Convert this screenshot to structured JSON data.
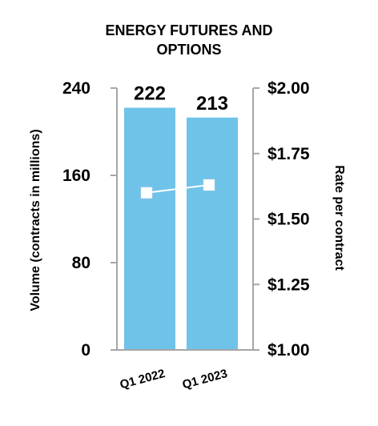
{
  "chart_data": {
    "type": "bar",
    "title_lines": [
      "ENERGY FUTURES AND",
      "OPTIONS"
    ],
    "categories": [
      "Q1 2022",
      "Q1 2023"
    ],
    "series": [
      {
        "name": "Volume",
        "values": [
          222,
          213
        ],
        "data_labels": [
          "222",
          "213"
        ],
        "axis": "left",
        "type": "bar",
        "color": "#6fc3e9"
      },
      {
        "name": "Rate per contract",
        "values": [
          1.6,
          1.63
        ],
        "axis": "right",
        "type": "line",
        "line_color": "#ffffff",
        "marker_color": "#ffffff"
      }
    ],
    "ylabel": "Volume (contracts in millions)",
    "y2label": "Rate per contract",
    "ylim": [
      0,
      240
    ],
    "y2lim": [
      1.0,
      2.0
    ],
    "yticks": [
      0,
      80,
      160,
      240
    ],
    "ytick_labels": [
      "0",
      "80",
      "160",
      "240"
    ],
    "y2ticks": [
      1.0,
      1.25,
      1.5,
      1.75,
      2.0
    ],
    "y2tick_labels": [
      "$1.00",
      "$1.25",
      "$1.50",
      "$1.75",
      "$2.00"
    ],
    "grid": false,
    "axis_color": "#a6a6a6"
  }
}
